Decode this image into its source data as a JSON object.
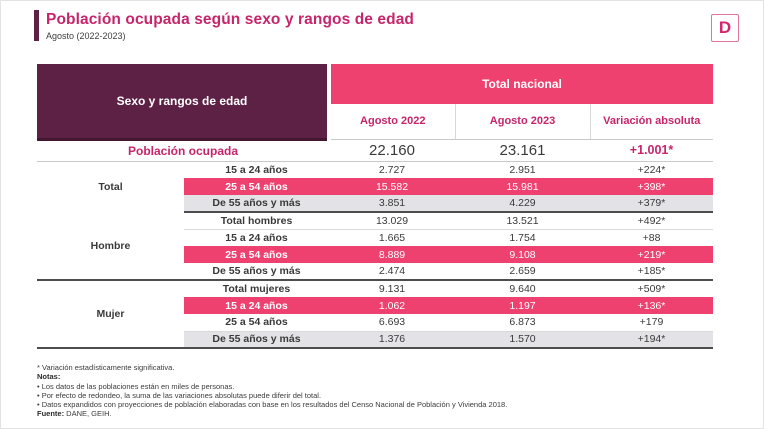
{
  "header": {
    "title": "Población ocupada según sexo y rangos de edad",
    "subtitle": "Agosto (2022-2023)",
    "logo_letter": "D"
  },
  "colors": {
    "brand_pink": "#ee4170",
    "dark_plum": "#5c2144",
    "accent_pink_text": "#c6256b",
    "gray_row": "#e3e3e7"
  },
  "table": {
    "corner_header": "Sexo y rangos de edad",
    "band_header": "Total nacional",
    "col_headers": [
      "Agosto 2022",
      "Agosto 2023",
      "Variación absoluta"
    ],
    "summary": {
      "label": "Población ocupada",
      "aug2022": "22.160",
      "aug2023": "23.161",
      "variation": "+1.001*"
    },
    "groups": [
      {
        "name": "Total",
        "rows": [
          {
            "label": "15 a 24 años",
            "aug2022": "2.727",
            "aug2023": "2.951",
            "variation": "+224*",
            "style": "white"
          },
          {
            "label": "25 a 54 años",
            "aug2022": "15.582",
            "aug2023": "15.981",
            "variation": "+398*",
            "style": "pink"
          },
          {
            "label": "De 55 años y más",
            "aug2022": "3.851",
            "aug2023": "4.229",
            "variation": "+379*",
            "style": "gray"
          }
        ]
      },
      {
        "name": "Hombre",
        "rows": [
          {
            "label": "Total hombres",
            "aug2022": "13.029",
            "aug2023": "13.521",
            "variation": "+492*",
            "style": "white"
          },
          {
            "label": "15 a 24 años",
            "aug2022": "1.665",
            "aug2023": "1.754",
            "variation": "+88",
            "style": "white"
          },
          {
            "label": "25 a 54 años",
            "aug2022": "8.889",
            "aug2023": "9.108",
            "variation": "+219*",
            "style": "pink"
          },
          {
            "label": "De 55 años y más",
            "aug2022": "2.474",
            "aug2023": "2.659",
            "variation": "+185*",
            "style": "white"
          }
        ]
      },
      {
        "name": "Mujer",
        "rows": [
          {
            "label": "Total mujeres",
            "aug2022": "9.131",
            "aug2023": "9.640",
            "variation": "+509*",
            "style": "white"
          },
          {
            "label": "15 a 24 años",
            "aug2022": "1.062",
            "aug2023": "1.197",
            "variation": "+136*",
            "style": "pink"
          },
          {
            "label": "25 a 54 años",
            "aug2022": "6.693",
            "aug2023": "6.873",
            "variation": "+179",
            "style": "white"
          },
          {
            "label": "De 55 años y más",
            "aug2022": "1.376",
            "aug2023": "1.570",
            "variation": "+194*",
            "style": "gray"
          }
        ]
      }
    ]
  },
  "footnotes": {
    "significance": "* Variación estadísticamente significativa.",
    "notes_label": "Notas:",
    "notes": [
      "• Los datos de las poblaciones están en miles de personas.",
      "• Por efecto de redondeo, la suma de las variaciones absolutas puede diferir del total.",
      "• Datos expandidos con proyecciones de población elaboradas con base en los resultados del Censo Nacional de Población y Vivienda 2018."
    ],
    "source_label": "Fuente:",
    "source": " DANE, GEIH."
  }
}
